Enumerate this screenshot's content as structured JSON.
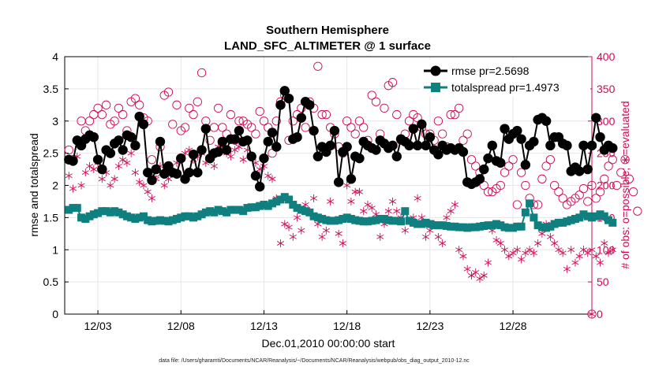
{
  "chart_data": {
    "type": "line",
    "title": "Southern Hemisphere",
    "subtitle": "LAND_SFC_ALTIMETER @ 1 surface",
    "xlabel": "Dec.01,2010 00:00:00 start",
    "ylabel_left": "rmse and totalspread",
    "ylabel_right": "# of obs: o=possible; ∗=evaluated",
    "footnote": "data file: /Users/gharamti/Documents/NCAR/Reanalysis/~/Documents/NCAR/Reanalysis/webpub/obs_diag_output_2010-12.nc",
    "xlim": [
      1,
      32.75
    ],
    "ylim_left": [
      0,
      4
    ],
    "ylim_right": [
      0,
      400
    ],
    "x_ticks": [
      3,
      8,
      13,
      18,
      23,
      28
    ],
    "x_tick_labels": [
      "12/03",
      "12/08",
      "12/13",
      "12/18",
      "12/23",
      "12/28"
    ],
    "y_left_ticks": [
      "0",
      "0.5",
      "1",
      "1.5",
      "2",
      "2.5",
      "3",
      "3.5",
      "4"
    ],
    "y_right_ticks": [
      "0",
      "50",
      "100",
      "150",
      "200",
      "250",
      "300",
      "350",
      "400"
    ],
    "grid": true,
    "legend_position": "top-right",
    "colors": {
      "rmse": "#000000",
      "totalspread": "#0f7f7f",
      "obs": "#cc0a55",
      "grid": "#e6e6e6"
    },
    "series": [
      {
        "name": "rmse pr=2.5698",
        "axis": "left",
        "x_start": 1.25,
        "x_step": 0.25,
        "values": [
          2.4,
          2.38,
          2.7,
          2.62,
          2.72,
          2.78,
          2.75,
          2.4,
          2.25,
          2.55,
          2.5,
          2.65,
          2.7,
          2.55,
          2.78,
          2.75,
          2.62,
          3.07,
          2.95,
          2.2,
          2.08,
          2.25,
          2.68,
          2.18,
          2.3,
          2.2,
          2.18,
          2.42,
          2.1,
          2.2,
          2.48,
          2.2,
          2.55,
          2.88,
          2.42,
          2.5,
          2.52,
          2.68,
          2.55,
          2.72,
          2.72,
          2.85,
          2.68,
          2.7,
          2.45,
          2.15,
          1.98,
          2.42,
          2.68,
          2.82,
          2.6,
          3.25,
          3.47,
          3.35,
          2.72,
          2.75,
          3.05,
          3.3,
          3.25,
          2.85,
          2.45,
          2.6,
          2.52,
          2.62,
          2.85,
          2.05,
          2.52,
          2.6,
          2.1,
          2.45,
          2.42,
          2.68,
          2.62,
          2.58,
          2.55,
          2.7,
          2.65,
          2.58,
          2.62,
          2.45,
          2.72,
          2.68,
          2.62,
          2.88,
          2.62,
          2.95,
          2.62,
          2.75,
          2.55,
          2.48,
          2.62,
          2.55,
          2.58,
          2.55,
          2.58,
          2.52,
          2.05,
          2.02,
          2.05,
          2.1,
          2.25,
          2.42,
          2.62,
          2.38,
          2.35,
          2.88,
          2.72,
          2.8,
          2.85,
          2.72,
          2.32,
          2.62,
          2.68,
          3.02,
          3.05,
          3.0,
          2.62,
          2.75,
          2.75,
          2.65,
          2.62,
          2.22,
          2.28,
          2.22,
          2.62,
          2.25,
          2.62,
          3.05,
          2.75,
          2.55,
          2.62,
          2.58
        ]
      },
      {
        "name": "totalspread pr=1.4973",
        "axis": "left",
        "x_start": 1.25,
        "x_step": 0.25,
        "values": [
          1.62,
          1.65,
          1.65,
          1.5,
          1.48,
          1.52,
          1.55,
          1.57,
          1.6,
          1.6,
          1.58,
          1.6,
          1.58,
          1.55,
          1.52,
          1.5,
          1.48,
          1.5,
          1.52,
          1.46,
          1.44,
          1.45,
          1.46,
          1.45,
          1.44,
          1.46,
          1.48,
          1.5,
          1.52,
          1.52,
          1.5,
          1.52,
          1.55,
          1.58,
          1.6,
          1.58,
          1.62,
          1.6,
          1.58,
          1.62,
          1.62,
          1.62,
          1.6,
          1.65,
          1.66,
          1.66,
          1.68,
          1.7,
          1.68,
          1.72,
          1.75,
          1.78,
          1.82,
          1.78,
          1.7,
          1.65,
          1.62,
          1.6,
          1.58,
          1.52,
          1.5,
          1.48,
          1.46,
          1.45,
          1.45,
          1.46,
          1.48,
          1.5,
          1.48,
          1.46,
          1.45,
          1.44,
          1.44,
          1.45,
          1.46,
          1.48,
          1.48,
          1.46,
          1.45,
          1.45,
          1.44,
          1.6,
          1.45,
          1.42,
          1.4,
          1.4,
          1.42,
          1.4,
          1.38,
          1.38,
          1.38,
          1.37,
          1.36,
          1.36,
          1.35,
          1.35,
          1.34,
          1.35,
          1.35,
          1.36,
          1.37,
          1.38,
          1.38,
          1.4,
          1.38,
          1.35,
          1.34,
          1.34,
          1.36,
          1.36,
          1.58,
          1.72,
          1.5,
          1.38,
          1.35,
          1.34,
          1.36,
          1.4,
          1.42,
          1.42,
          1.44,
          1.46,
          1.48,
          1.5,
          1.55,
          1.52,
          1.5,
          1.52,
          1.55,
          1.52,
          1.46,
          1.42
        ]
      },
      {
        "name": "possible",
        "axis": "right",
        "marker": "circle",
        "x_start": 1.25,
        "x_step": 0.25,
        "values": [
          255,
          240,
          270,
          300,
          285,
          300,
          310,
          320,
          310,
          325,
          295,
          300,
          320,
          310,
          285,
          330,
          335,
          325,
          305,
          300,
          240,
          220,
          260,
          340,
          345,
          295,
          325,
          285,
          290,
          320,
          310,
          330,
          375,
          300,
          270,
          290,
          320,
          290,
          280,
          310,
          270,
          300,
          300,
          295,
          290,
          280,
          315,
          300,
          290,
          250,
          300,
          330,
          340,
          270,
          300,
          310,
          320,
          290,
          330,
          320,
          385,
          310,
          310,
          290,
          280,
          260,
          250,
          300,
          290,
          280,
          300,
          290,
          270,
          340,
          330,
          280,
          320,
          355,
          360,
          310,
          270,
          280,
          300,
          310,
          305,
          290,
          280,
          280,
          270,
          300,
          280,
          260,
          310,
          310,
          320,
          270,
          280,
          240,
          230,
          220,
          200,
          190,
          190,
          195,
          200,
          220,
          230,
          240,
          170,
          220,
          200,
          180,
          170,
          170,
          210,
          230,
          240,
          200,
          190,
          180,
          170,
          175,
          180,
          185,
          195,
          175,
          200,
          180,
          190,
          210,
          230,
          240,
          200,
          220,
          240,
          210,
          190,
          160
        ]
      },
      {
        "name": "evaluated",
        "axis": "right",
        "marker": "star",
        "x_start": 1.25,
        "x_step": 0.25,
        "values": [
          215,
          195,
          245,
          200,
          220,
          230,
          225,
          235,
          210,
          220,
          200,
          210,
          230,
          240,
          235,
          250,
          220,
          205,
          200,
          190,
          180,
          210,
          230,
          200,
          210,
          220,
          235,
          240,
          250,
          255,
          240,
          245,
          250,
          235,
          240,
          230,
          260,
          260,
          250,
          245,
          255,
          260,
          240,
          255,
          245,
          235,
          225,
          230,
          215,
          210,
          180,
          110,
          140,
          135,
          120,
          150,
          130,
          170,
          160,
          180,
          140,
          120,
          130,
          175,
          145,
          125,
          110,
          200,
          175,
          190,
          190,
          160,
          170,
          165,
          155,
          120,
          140,
          160,
          175,
          160,
          150,
          130,
          145,
          150,
          180,
          150,
          120,
          130,
          140,
          120,
          110,
          150,
          160,
          170,
          100,
          90,
          70,
          60,
          65,
          55,
          60,
          80,
          130,
          115,
          110,
          100,
          90,
          95,
          100,
          85,
          95,
          100,
          95,
          110,
          125,
          140,
          120,
          110,
          100,
          95,
          70,
          100,
          80,
          90,
          100,
          95,
          100,
          90,
          80,
          110,
          95,
          100
        ]
      }
    ]
  }
}
